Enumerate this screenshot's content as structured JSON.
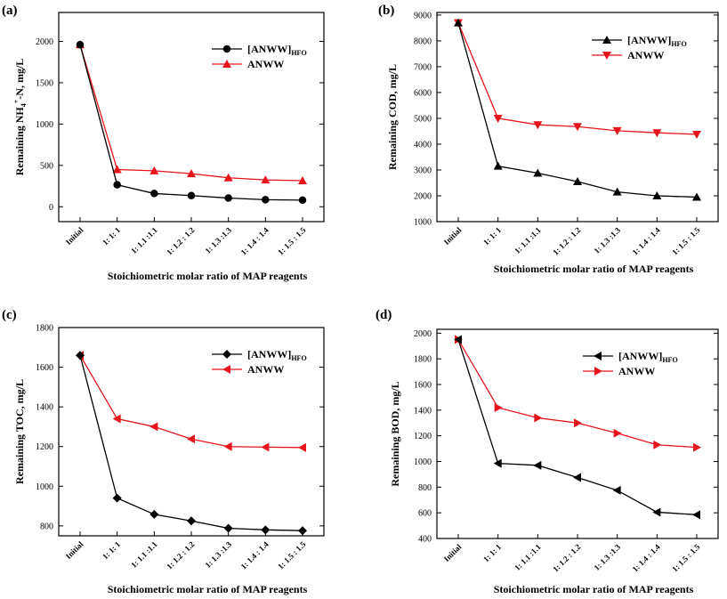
{
  "figure": {
    "categories": [
      "Initial",
      "1: 1: 1",
      "1: 1.1 :1.1",
      "1: 1.2 : 1.2",
      "1: 1.3 :1.3",
      "1: 1.4 : 1.4",
      "1: 1.5 : 1.5"
    ],
    "xlabel": "Stoichiometric molar ratio of MAP reagents",
    "colors": {
      "hfo": "#000000",
      "anww": "#e8141c",
      "axis": "#000000"
    }
  },
  "chart_data": [
    {
      "type": "line",
      "panel_label": "(a)",
      "ylabel_main": "Remaining NH",
      "ylabel_sub": "4",
      "ylabel_sup": "+",
      "ylabel_rest": "-N, mg/L",
      "xlabel": "Stoichiometric molar ratio of MAP reagents",
      "categories": [
        "Initial",
        "1: 1: 1",
        "1: 1.1 :1.1",
        "1: 1.2 : 1.2",
        "1: 1.3 :1.3",
        "1: 1.4 : 1.4",
        "1: 1.5 : 1.5"
      ],
      "ylim": [
        -180,
        2350
      ],
      "yticks": [
        0,
        500,
        1000,
        1500,
        2000
      ],
      "legend_position": "top-right",
      "series": [
        {
          "name": "[ANWW]",
          "name_sub": "HFO",
          "marker": "circle",
          "color": "#000000",
          "values": [
            1960,
            265,
            160,
            135,
            105,
            85,
            80
          ]
        },
        {
          "name": "ANWW",
          "name_sub": "",
          "marker": "triangle-up",
          "color": "#e8141c",
          "values": [
            1960,
            450,
            435,
            400,
            350,
            325,
            315
          ]
        }
      ]
    },
    {
      "type": "line",
      "panel_label": "(b)",
      "ylabel_main": "Remaining COD, mg/L",
      "ylabel_sub": "",
      "ylabel_sup": "",
      "ylabel_rest": "",
      "xlabel": "Stoichiometric molar ratio of MAP reagents",
      "categories": [
        "Initial",
        "1: 1: 1",
        "1: 1.1 :1.1",
        "1: 1.2 : 1.2",
        "1: 1.3 :1.3",
        "1: 1.4 : 1.4",
        "1: 1.5 : 1.5"
      ],
      "ylim": [
        1000,
        9100
      ],
      "yticks": [
        1000,
        2000,
        3000,
        4000,
        5000,
        6000,
        7000,
        8000,
        9000
      ],
      "legend_position": "top-right",
      "series": [
        {
          "name": "[ANWW]",
          "name_sub": "HFO",
          "marker": "triangle-up",
          "color": "#000000",
          "values": [
            8700,
            3150,
            2880,
            2550,
            2150,
            2000,
            1950
          ]
        },
        {
          "name": "ANWW",
          "name_sub": "",
          "marker": "triangle-down",
          "color": "#e8141c",
          "values": [
            8700,
            5000,
            4750,
            4680,
            4520,
            4440,
            4380
          ]
        }
      ]
    },
    {
      "type": "line",
      "panel_label": "(c)",
      "ylabel_main": "Remaining TOC, mg/L",
      "ylabel_sub": "",
      "ylabel_sup": "",
      "ylabel_rest": "",
      "xlabel": "Stoichiometric molar ratio of MAP reagents",
      "categories": [
        "Initial",
        "1: 1: 1",
        "1: 1.1 :1.1",
        "1: 1.2 : 1.2",
        "1: 1.3 :1.3",
        "1: 1.4 : 1.4",
        "1: 1.5 : 1.5"
      ],
      "ylim": [
        750,
        1800
      ],
      "yticks": [
        800,
        1000,
        1200,
        1400,
        1600,
        1800
      ],
      "legend_position": "top-right",
      "series": [
        {
          "name": "[ANWW]",
          "name_sub": "HFO",
          "marker": "diamond",
          "color": "#000000",
          "values": [
            1660,
            940,
            858,
            825,
            788,
            780,
            776
          ]
        },
        {
          "name": "ANWW",
          "name_sub": "",
          "marker": "triangle-left",
          "color": "#e8141c",
          "values": [
            1660,
            1340,
            1300,
            1238,
            1200,
            1197,
            1195
          ]
        }
      ]
    },
    {
      "type": "line",
      "panel_label": "(d)",
      "ylabel_main": "Remaining BOD, mg/L",
      "ylabel_sub": "",
      "ylabel_sup": "",
      "ylabel_rest": "",
      "xlabel": "Stoichiometric molar ratio of MAP reagents",
      "categories": [
        "Initial",
        "1: 1: 1",
        "1: 1.1 :1.1",
        "1: 1.2 : 1.2",
        "1: 1.3 :1.3",
        "1: 1.4 : 1.4",
        "1: 1.5 : 1.5"
      ],
      "ylim": [
        400,
        2030
      ],
      "yticks": [
        400,
        600,
        800,
        1000,
        1200,
        1400,
        1600,
        1800,
        2000
      ],
      "legend_position": "top-right",
      "series": [
        {
          "name": "[ANWW]",
          "name_sub": "HFO",
          "marker": "triangle-left",
          "color": "#000000",
          "values": [
            1950,
            985,
            970,
            875,
            775,
            605,
            585
          ]
        },
        {
          "name": "ANWW",
          "name_sub": "",
          "marker": "triangle-right",
          "color": "#e8141c",
          "values": [
            1950,
            1420,
            1340,
            1300,
            1220,
            1130,
            1110
          ]
        }
      ]
    }
  ]
}
